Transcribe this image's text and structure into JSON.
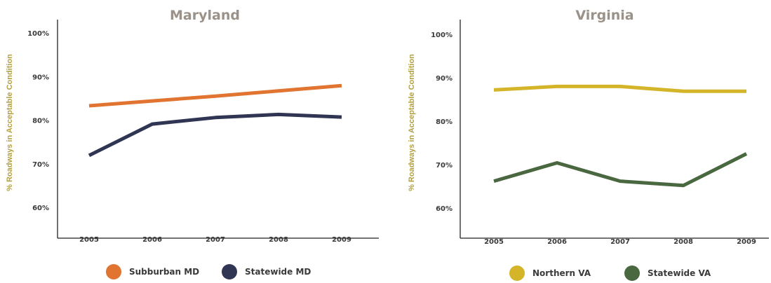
{
  "chart_data": [
    {
      "type": "line",
      "title": "Maryland",
      "ylabel": "% Roadways in Acceptable Condition",
      "xlabel": "",
      "categories": [
        "2005",
        "2006",
        "2007",
        "2008",
        "2009"
      ],
      "yticks": [
        "100%",
        "90%",
        "80%",
        "70%",
        "60%"
      ],
      "ylim": [
        55,
        103
      ],
      "grid": false,
      "legend_placement": "bottom",
      "series": [
        {
          "name": "Subburban MD",
          "color": "#e07430",
          "values": [
            83.3,
            84.4,
            85.5,
            86.7,
            87.9
          ]
        },
        {
          "name": "Statewide MD",
          "color": "#2f3552",
          "values": [
            71.9,
            79.1,
            80.6,
            81.3,
            80.7
          ]
        }
      ]
    },
    {
      "type": "line",
      "title": "Virginia",
      "ylabel": "% Roadways in Acceptable Condition",
      "xlabel": "",
      "categories": [
        "2005",
        "2006",
        "2007",
        "2008",
        "2009"
      ],
      "yticks": [
        "100%",
        "90%",
        "80%",
        "70%",
        "60%"
      ],
      "ylim": [
        55,
        103
      ],
      "grid": false,
      "legend_placement": "bottom",
      "series": [
        {
          "name": "Northern VA",
          "color": "#d4b52a",
          "values": [
            87.2,
            88.0,
            88.0,
            86.9,
            86.9
          ]
        },
        {
          "name": "Statewide VA",
          "color": "#4a6840",
          "values": [
            66.2,
            70.4,
            66.2,
            65.2,
            72.5
          ]
        }
      ]
    }
  ]
}
